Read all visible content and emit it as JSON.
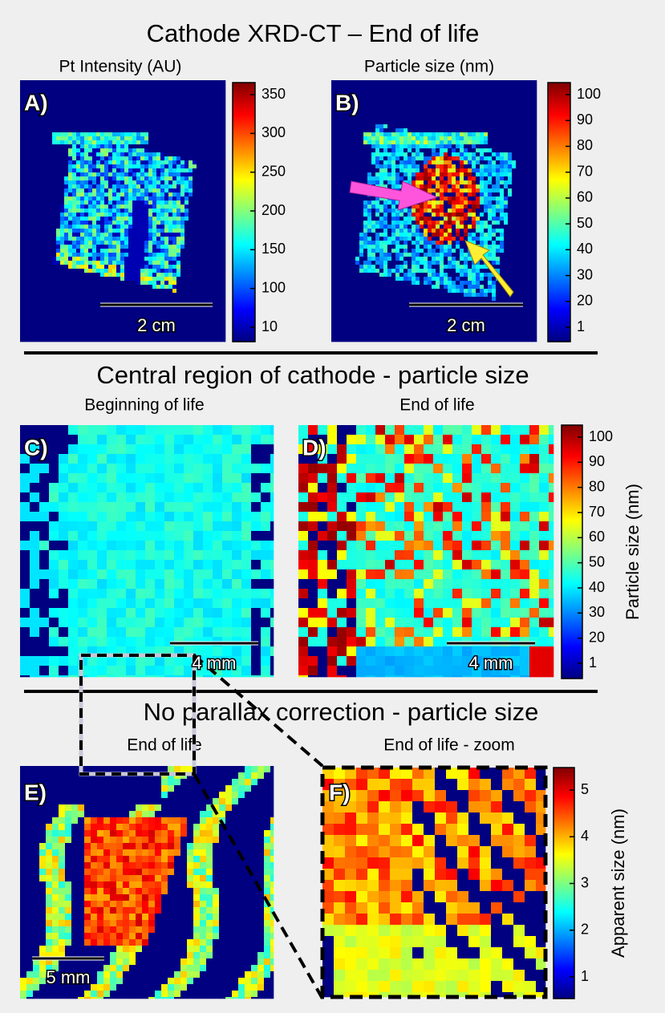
{
  "section_titles": [
    "Cathode XRD-CT – End of life",
    "Central region of cathode - particle size",
    "No parallax correction - particle size"
  ],
  "panels": [
    {
      "label": "A)",
      "subtitle": "Pt Intensity (AU)",
      "scale_bar": "2 cm"
    },
    {
      "label": "B)",
      "subtitle": "Particle size (nm)",
      "scale_bar": "2 cm"
    },
    {
      "label": "C)",
      "subtitle": "Beginning of life",
      "scale_bar": "4 mm"
    },
    {
      "label": "D)",
      "subtitle": "End of life",
      "scale_bar": "4 mm"
    },
    {
      "label": "E)",
      "subtitle": "End of life",
      "scale_bar": "5 mm"
    },
    {
      "label": "F)",
      "subtitle": "End of life - zoom"
    }
  ],
  "colorbars": [
    {
      "ticks": [
        350,
        300,
        250,
        200,
        150,
        100,
        10
      ]
    },
    {
      "ticks": [
        100,
        90,
        80,
        70,
        60,
        50,
        40,
        30,
        20,
        1
      ]
    },
    {
      "ticks": [
        100,
        90,
        80,
        70,
        60,
        50,
        40,
        30,
        20,
        1
      ],
      "label": "Particle size (nm)"
    },
    {
      "ticks": [
        5,
        4,
        3,
        2,
        1
      ],
      "label": "Apparent size (nm)"
    }
  ]
}
